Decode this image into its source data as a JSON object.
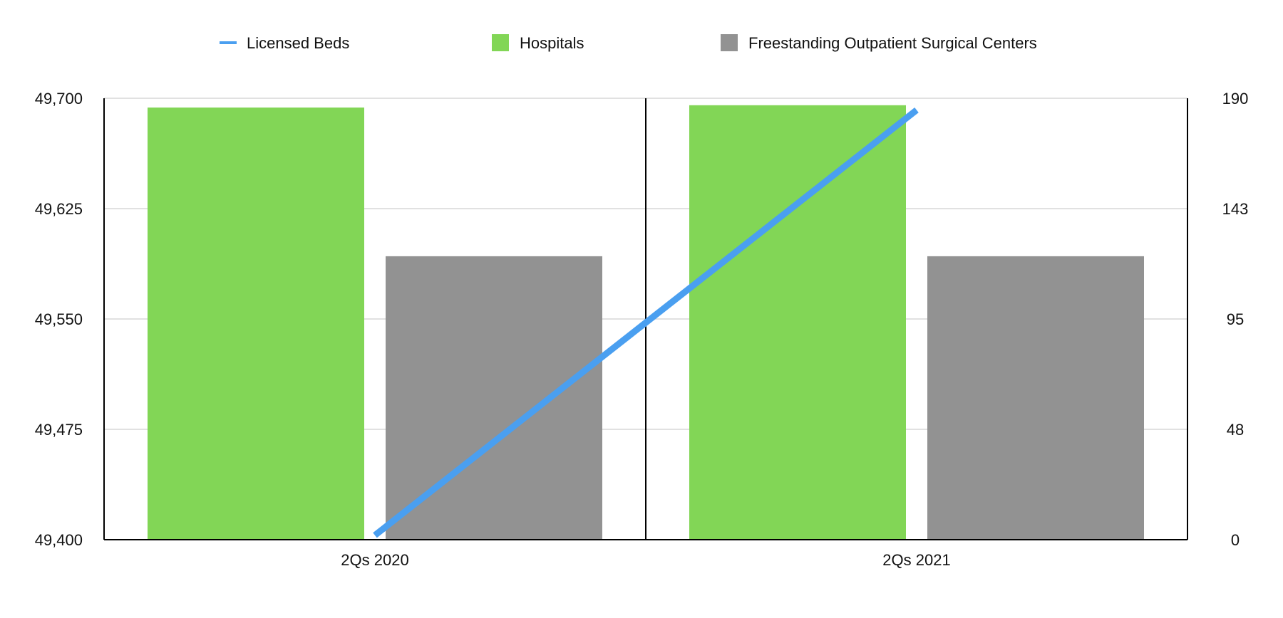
{
  "chart_data": {
    "type": "bar",
    "categories": [
      "2Qs 2020",
      "2Qs 2021"
    ],
    "y_left": {
      "ylim": [
        49400,
        49700
      ],
      "tick_labels": [
        "49,700",
        "49,625",
        "49,550",
        "49,475",
        "49,400"
      ],
      "tick_values": [
        49700,
        49625,
        49550,
        49475,
        49400
      ]
    },
    "y_right": {
      "ylim": [
        0,
        190
      ],
      "tick_labels": [
        "190",
        "143",
        "95",
        "48",
        "0"
      ],
      "tick_values": [
        190,
        142.5,
        95,
        47.5,
        0
      ]
    },
    "series": [
      {
        "name": "Licensed Beds",
        "kind": "line",
        "axis": "left",
        "color": "#4a9ff0",
        "values": [
          49403,
          49692
        ]
      },
      {
        "name": "Hospitals",
        "kind": "bar",
        "axis": "right",
        "color": "#82d656",
        "values": [
          186,
          187
        ]
      },
      {
        "name": "Freestanding Outpatient Surgical Centers",
        "kind": "bar",
        "axis": "right",
        "color": "#929292",
        "values": [
          122,
          122
        ]
      }
    ],
    "legend_position": "top-center",
    "grid": true
  }
}
